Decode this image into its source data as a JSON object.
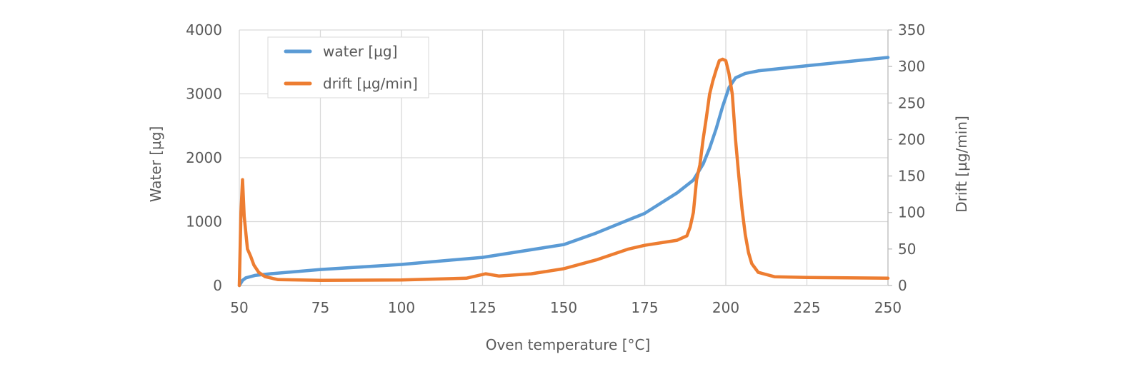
{
  "chart_data": {
    "type": "line",
    "title": "",
    "xlabel": "Oven temperature [°C]",
    "ylabel": "Water [µg]",
    "y2label": "Drift [µg/min]",
    "xlim": [
      50,
      250
    ],
    "ylim": [
      0,
      4000
    ],
    "y2lim": [
      0,
      350
    ],
    "xticks": [
      50,
      75,
      100,
      125,
      150,
      175,
      200,
      225,
      250
    ],
    "yticks": [
      0,
      1000,
      2000,
      3000,
      4000
    ],
    "y2ticks": [
      0,
      50,
      100,
      150,
      200,
      250,
      300,
      350
    ],
    "grid": true,
    "legend_position": "top-left",
    "series": [
      {
        "name": "water [µg]",
        "axis": "left",
        "color": "#5b9bd5",
        "x": [
          50,
          51,
          52,
          55,
          60,
          75,
          100,
          125,
          150,
          160,
          175,
          185,
          190,
          193,
          195,
          197,
          199,
          201,
          203,
          206,
          210,
          225,
          250
        ],
        "y": [
          0,
          80,
          120,
          160,
          185,
          250,
          330,
          440,
          640,
          820,
          1130,
          1450,
          1650,
          1900,
          2150,
          2450,
          2800,
          3100,
          3250,
          3320,
          3360,
          3440,
          3570
        ]
      },
      {
        "name": "drift [µg/min]",
        "axis": "right",
        "color": "#ed7d31",
        "x": [
          50,
          50.5,
          51,
          51.5,
          52.5,
          53.5,
          54.5,
          56,
          58,
          62,
          75,
          100,
          120,
          126,
          130,
          140,
          150,
          160,
          170,
          175,
          185,
          188,
          189,
          190,
          191,
          192,
          193,
          194,
          195,
          196,
          197,
          198,
          199,
          200,
          201,
          202,
          203,
          204,
          205,
          206,
          207,
          208,
          210,
          215,
          225,
          250
        ],
        "y": [
          0,
          100,
          145,
          95,
          50,
          40,
          28,
          18,
          12,
          8,
          7,
          7.5,
          10,
          16,
          13,
          16,
          23,
          35,
          50,
          55,
          62,
          68,
          80,
          100,
          145,
          165,
          200,
          230,
          262,
          280,
          295,
          308,
          310,
          308,
          290,
          262,
          200,
          150,
          105,
          70,
          45,
          30,
          18,
          12,
          11,
          10
        ]
      }
    ]
  }
}
